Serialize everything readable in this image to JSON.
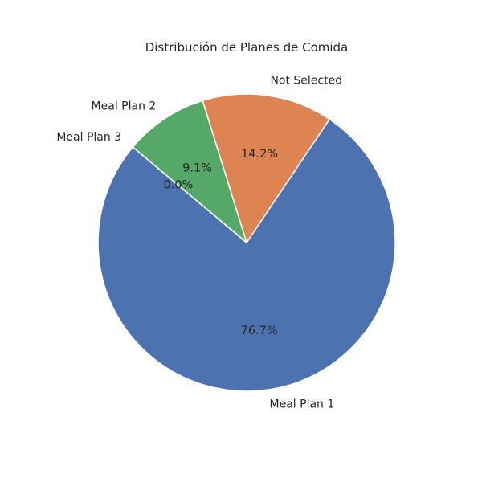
{
  "chart_data": {
    "type": "pie",
    "title": "Distribución de Planes de Comida",
    "slices": [
      {
        "label": "Meal Plan 1",
        "value": 76.7,
        "pct_label": "76.7%",
        "color": "#4c72b0"
      },
      {
        "label": "Not Selected",
        "value": 14.2,
        "pct_label": "14.2%",
        "color": "#dd8452"
      },
      {
        "label": "Meal Plan 2",
        "value": 9.1,
        "pct_label": "9.1%",
        "color": "#55a868"
      },
      {
        "label": "Meal Plan 3",
        "value": 0.0,
        "pct_label": "0.0%",
        "color": "#c44e52"
      }
    ],
    "start_angle_deg": 140,
    "direction": "counterclockwise"
  }
}
